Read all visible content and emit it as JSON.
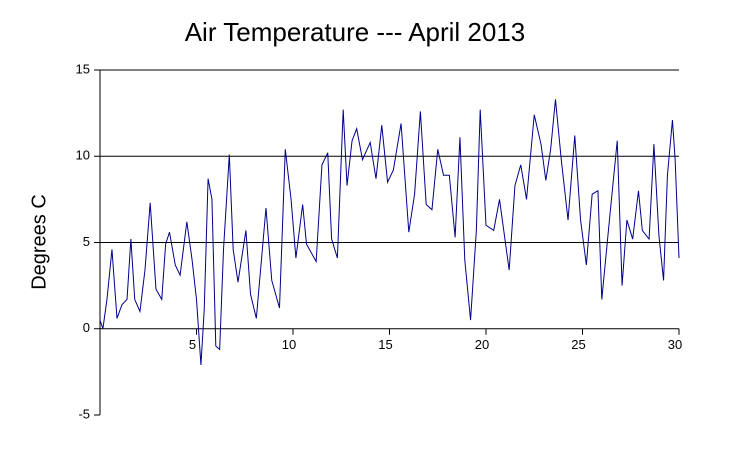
{
  "chart_data": {
    "type": "line",
    "title": "Air Temperature --- April 2013",
    "y_label": "Degrees C",
    "x": [
      0,
      0.15,
      0.36,
      0.62,
      0.88,
      1.14,
      1.4,
      1.6,
      1.8,
      2.07,
      2.33,
      2.6,
      2.9,
      3.2,
      3.4,
      3.6,
      3.9,
      4.15,
      4.5,
      4.77,
      5.0,
      5.23,
      5.4,
      5.6,
      5.8,
      6.0,
      6.2,
      6.4,
      6.7,
      6.9,
      7.15,
      7.56,
      7.8,
      8.1,
      8.6,
      8.9,
      9.3,
      9.6,
      9.9,
      10.15,
      10.5,
      10.7,
      11.2,
      11.5,
      11.8,
      12.0,
      12.3,
      12.6,
      12.8,
      13.06,
      13.3,
      13.6,
      14.0,
      14.3,
      14.6,
      14.9,
      15.2,
      15.6,
      16.0,
      16.3,
      16.6,
      16.9,
      17.2,
      17.5,
      17.8,
      18.1,
      18.4,
      18.65,
      18.9,
      19.2,
      19.5,
      19.7,
      20.0,
      20.4,
      20.7,
      21.2,
      21.5,
      21.8,
      22.1,
      22.5,
      22.85,
      23.1,
      23.35,
      23.6,
      23.9,
      24.25,
      24.6,
      24.9,
      25.2,
      25.5,
      25.8,
      26.0,
      26.3,
      26.5,
      26.8,
      27.05,
      27.3,
      27.6,
      27.9,
      28.1,
      28.45,
      28.7,
      28.96,
      29.2,
      29.4,
      29.66,
      29.8,
      30.0
    ],
    "values": [
      0.5,
      0,
      1.7,
      4.6,
      0.6,
      1.4,
      1.7,
      5.2,
      1.7,
      1.0,
      3.4,
      7.3,
      2.3,
      1.7,
      4.9,
      5.6,
      3.7,
      3.1,
      6.2,
      4.0,
      1.7,
      -2.1,
      1.1,
      8.7,
      7.5,
      -1.0,
      -1.2,
      4.6,
      10.1,
      4.6,
      2.7,
      5.7,
      2.0,
      0.6,
      7.0,
      2.8,
      1.2,
      10.4,
      7.5,
      4.1,
      7.2,
      4.9,
      3.9,
      9.5,
      10.2,
      5.2,
      4.1,
      12.7,
      8.3,
      10.9,
      11.6,
      9.8,
      10.8,
      8.7,
      11.8,
      8.5,
      9.2,
      11.9,
      5.6,
      7.8,
      12.6,
      7.2,
      6.9,
      10.4,
      8.9,
      8.9,
      5.3,
      11.1,
      4.0,
      0.5,
      5.7,
      12.7,
      6.0,
      5.7,
      7.5,
      3.4,
      8.3,
      9.5,
      7.5,
      12.4,
      10.7,
      8.6,
      10.4,
      13.3,
      9.8,
      6.3,
      11.2,
      6.3,
      3.7,
      7.8,
      8.0,
      1.7,
      5.2,
      7.5,
      10.9,
      2.5,
      6.3,
      5.2,
      8.0,
      5.7,
      5.2,
      10.7,
      5.4,
      2.8,
      8.9,
      12.1,
      9.8,
      4.1
    ],
    "color": "#00008b",
    "xlim": [
      0,
      30
    ],
    "xticks": [
      5,
      10,
      15,
      20,
      25,
      30
    ],
    "ylim": [
      -5,
      15
    ],
    "yticks": [
      -5,
      0,
      5,
      10,
      15
    ],
    "grid": true
  }
}
